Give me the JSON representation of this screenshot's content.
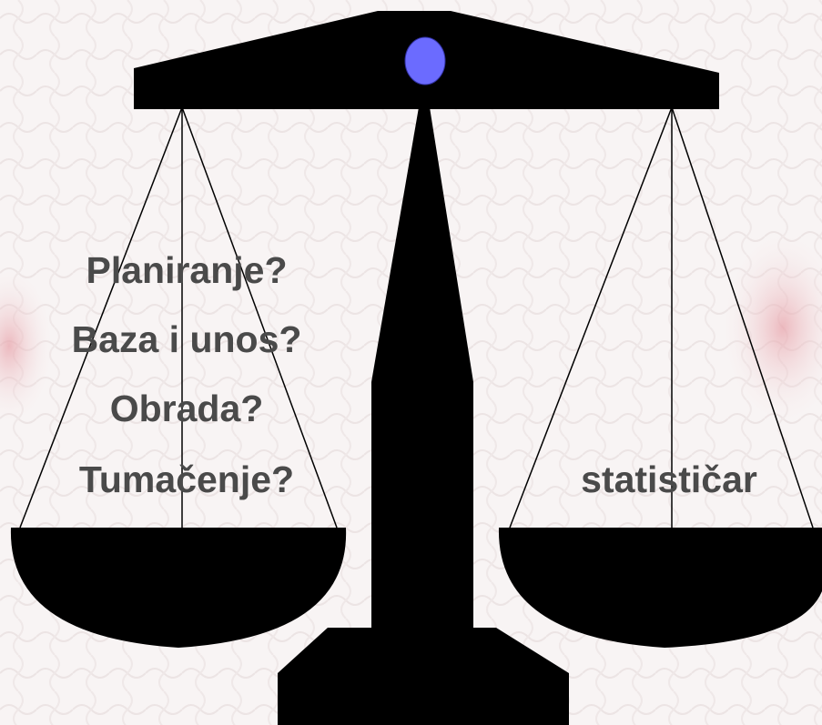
{
  "left_pan": {
    "lines": [
      "Planiranje?",
      "Baza i unos?",
      "Obrada?",
      "Tumačenje?"
    ]
  },
  "right_pan": {
    "label": "statističar"
  }
}
